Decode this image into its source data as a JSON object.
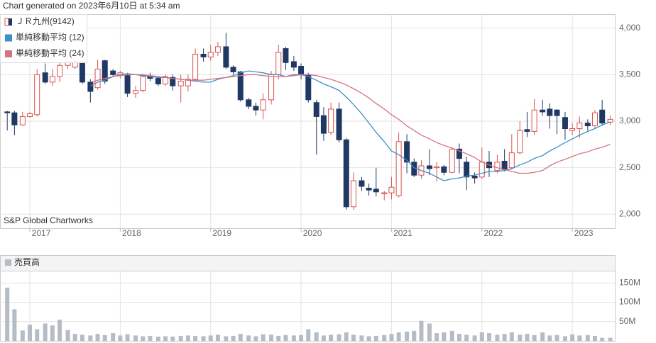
{
  "chart_data": [
    {
      "type": "candlestick",
      "title": "Chart generated on 2023年6月10日 at 5:34 am",
      "source": "S&P Global Chartworks",
      "legend": "upper left",
      "grid": true,
      "xlim": [
        2016.67,
        2023.47
      ],
      "xticks": [
        2017,
        2018,
        2019,
        2020,
        2021,
        2022,
        2023
      ],
      "ylim": [
        1850,
        4150
      ],
      "yticks": [
        {
          "value": 2000,
          "label": "2,000"
        },
        {
          "value": 2500,
          "label": "2,500"
        },
        {
          "value": 3000,
          "label": "3,000"
        },
        {
          "value": 3500,
          "label": "3,500"
        },
        {
          "value": 4000,
          "label": "4,000"
        }
      ],
      "x": [
        2016.75,
        2016.83,
        2016.92,
        2017,
        2017.08,
        2017.17,
        2017.25,
        2017.33,
        2017.42,
        2017.5,
        2017.58,
        2017.67,
        2017.75,
        2017.83,
        2017.92,
        2018,
        2018.08,
        2018.17,
        2018.25,
        2018.33,
        2018.42,
        2018.5,
        2018.58,
        2018.67,
        2018.75,
        2018.83,
        2018.92,
        2019,
        2019.08,
        2019.17,
        2019.25,
        2019.33,
        2019.42,
        2019.5,
        2019.58,
        2019.67,
        2019.75,
        2019.83,
        2019.92,
        2020,
        2020.08,
        2020.17,
        2020.25,
        2020.33,
        2020.42,
        2020.5,
        2020.58,
        2020.67,
        2020.75,
        2020.83,
        2020.92,
        2021,
        2021.08,
        2021.17,
        2021.25,
        2021.33,
        2021.42,
        2021.5,
        2021.58,
        2021.67,
        2021.75,
        2021.83,
        2021.92,
        2022,
        2022.08,
        2022.17,
        2022.25,
        2022.33,
        2022.42,
        2022.5,
        2022.58,
        2022.67,
        2022.75,
        2022.83,
        2022.92,
        2023,
        2023.08,
        2023.17,
        2023.25,
        2023.33,
        2023.42
      ],
      "series": [
        {
          "name": "ＪＲ九州(9142)",
          "type": "candlestick",
          "color": "#d9534f",
          "down_color": "#1f3864",
          "open": [
            3100,
            3090,
            2960,
            3050,
            3070,
            3520,
            3420,
            3480,
            3600,
            3580,
            3640,
            3420,
            3360,
            3650,
            3540,
            3500,
            3490,
            3300,
            3330,
            3480,
            3460,
            3400,
            3470,
            3380,
            3380,
            3450,
            3720,
            3690,
            3740,
            3800,
            3580,
            3530,
            3230,
            3160,
            3120,
            3230,
            3500,
            3780,
            3640,
            3590,
            3500,
            3200,
            3060,
            2880,
            3130,
            2800,
            2080,
            2360,
            2280,
            2270,
            2220,
            2230,
            2200,
            2780,
            2560,
            2420,
            2520,
            2500,
            2510,
            2450,
            2700,
            2560,
            2410,
            2400,
            2560,
            2470,
            2570,
            2500,
            2660,
            2910,
            2890,
            3120,
            3130,
            3120,
            3040,
            2900,
            2920,
            2980,
            2950,
            3120,
            2990
          ],
          "high": [
            3110,
            3110,
            3100,
            3100,
            3560,
            3620,
            3560,
            3660,
            3700,
            3700,
            3650,
            3450,
            3660,
            3660,
            3560,
            3540,
            3520,
            3380,
            3500,
            3520,
            3480,
            3500,
            3500,
            3500,
            3500,
            3780,
            3780,
            3820,
            3850,
            3950,
            3600,
            3540,
            3250,
            3200,
            3300,
            3540,
            3820,
            3800,
            3700,
            3620,
            3520,
            3230,
            3150,
            3200,
            3200,
            2820,
            2450,
            2400,
            2330,
            2500,
            2250,
            2400,
            2880,
            2860,
            2600,
            2580,
            2700,
            2560,
            2530,
            2720,
            2760,
            2620,
            2450,
            2720,
            2680,
            2640,
            2700,
            2860,
            3000,
            3100,
            3240,
            3230,
            3190,
            3130,
            3100,
            2980,
            3050,
            3020,
            3120,
            3230,
            3060
          ],
          "low": [
            2900,
            2850,
            2950,
            3040,
            3050,
            3400,
            3380,
            3420,
            3560,
            3560,
            3400,
            3200,
            3340,
            3400,
            3480,
            3460,
            3260,
            3250,
            3310,
            3430,
            3380,
            3380,
            3330,
            3200,
            3320,
            3430,
            3640,
            3650,
            3700,
            3560,
            3500,
            3210,
            3130,
            3060,
            3020,
            3180,
            3450,
            3550,
            3540,
            3450,
            3200,
            2640,
            2790,
            2850,
            2770,
            2050,
            2050,
            2250,
            2200,
            2190,
            2150,
            2160,
            2180,
            2440,
            2400,
            2380,
            2420,
            2350,
            2420,
            2440,
            2440,
            2260,
            2330,
            2380,
            2400,
            2440,
            2460,
            2480,
            2640,
            2830,
            2850,
            3060,
            2920,
            2860,
            2800,
            2850,
            2820,
            2900,
            2920,
            2950,
            2960
          ],
          "close": [
            3090,
            2960,
            3050,
            3080,
            3500,
            3420,
            3480,
            3600,
            3640,
            3640,
            3420,
            3320,
            3560,
            3430,
            3500,
            3520,
            3300,
            3330,
            3480,
            3460,
            3400,
            3480,
            3380,
            3430,
            3450,
            3720,
            3690,
            3740,
            3800,
            3580,
            3530,
            3230,
            3160,
            3120,
            3230,
            3500,
            3740,
            3630,
            3580,
            3500,
            3230,
            3050,
            2870,
            3130,
            2800,
            2080,
            2360,
            2300,
            2260,
            2240,
            2230,
            2290,
            2780,
            2560,
            2420,
            2520,
            2490,
            2510,
            2450,
            2700,
            2600,
            2400,
            2390,
            2560,
            2500,
            2560,
            2480,
            2660,
            2900,
            2890,
            3120,
            3100,
            3060,
            3060,
            2920,
            2920,
            2980,
            2950,
            3090,
            2980,
            3020
          ]
        },
        {
          "name": "単純移動平均 (12)",
          "type": "line",
          "color": "#3d8fc7",
          "values": [
            null,
            null,
            null,
            null,
            null,
            null,
            null,
            null,
            null,
            null,
            null,
            3380,
            3420,
            3440,
            3480,
            3500,
            3510,
            3500,
            3490,
            3480,
            3470,
            3470,
            3460,
            3450,
            3440,
            3430,
            3420,
            3420,
            3450,
            3470,
            3490,
            3520,
            3540,
            3530,
            3520,
            3500,
            3500,
            3480,
            3500,
            3500,
            3480,
            3440,
            3400,
            3370,
            3330,
            3260,
            3180,
            3080,
            2980,
            2880,
            2780,
            2680,
            2640,
            2580,
            2500,
            2470,
            2440,
            2400,
            2360,
            2380,
            2390,
            2410,
            2420,
            2440,
            2460,
            2460,
            2470,
            2490,
            2530,
            2560,
            2600,
            2630,
            2680,
            2720,
            2770,
            2810,
            2850,
            2890,
            2920,
            2960,
            2990
          ]
        },
        {
          "name": "単純移動平均 (24)",
          "type": "line",
          "color": "#d9727f",
          "values": [
            null,
            null,
            null,
            null,
            null,
            null,
            null,
            null,
            null,
            null,
            null,
            3420,
            3440,
            3460,
            3480,
            3490,
            3500,
            3500,
            3500,
            3490,
            3480,
            3470,
            3460,
            3450,
            3440,
            3440,
            3440,
            3450,
            3460,
            3470,
            3480,
            3490,
            3500,
            3500,
            3490,
            3480,
            3480,
            3480,
            3490,
            3500,
            3500,
            3490,
            3470,
            3450,
            3420,
            3390,
            3350,
            3300,
            3250,
            3190,
            3130,
            3070,
            3020,
            2950,
            2900,
            2850,
            2810,
            2770,
            2740,
            2710,
            2680,
            2650,
            2610,
            2560,
            2530,
            2500,
            2480,
            2460,
            2440,
            2440,
            2450,
            2470,
            2520,
            2560,
            2590,
            2620,
            2650,
            2670,
            2700,
            2720,
            2750
          ]
        }
      ]
    },
    {
      "type": "bar",
      "grid": true,
      "ylim": [
        0,
        180
      ],
      "yticks": [
        {
          "value": 50,
          "label": "50M"
        },
        {
          "value": 100,
          "label": "100M"
        },
        {
          "value": 150,
          "label": "150M"
        }
      ],
      "series": [
        {
          "name": "売買高",
          "color": "#b4bcc6",
          "values": [
            138,
            82,
            27,
            42,
            30,
            45,
            40,
            55,
            28,
            18,
            16,
            14,
            18,
            15,
            20,
            14,
            17,
            14,
            12,
            13,
            11,
            12,
            11,
            13,
            14,
            13,
            12,
            14,
            16,
            12,
            13,
            18,
            14,
            12,
            17,
            16,
            13,
            15,
            14,
            15,
            30,
            22,
            14,
            16,
            17,
            22,
            16,
            14,
            12,
            13,
            15,
            18,
            22,
            24,
            26,
            52,
            45,
            20,
            22,
            26,
            18,
            16,
            14,
            22,
            20,
            16,
            18,
            22,
            16,
            18,
            15,
            22,
            14,
            15,
            12,
            17,
            14,
            15,
            13,
            8,
            8
          ]
        }
      ]
    }
  ]
}
